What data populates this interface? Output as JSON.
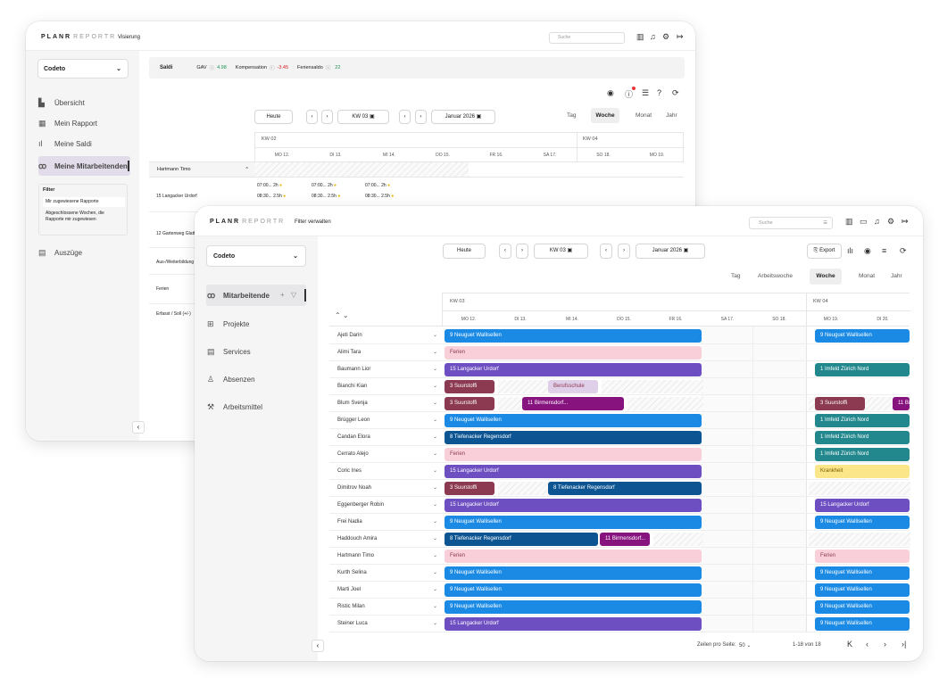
{
  "back": {
    "logo_a": "PLANR",
    "logo_b": "REPORTR",
    "nav": "Visierung",
    "search": "Suche",
    "company": "Codeto",
    "menu": [
      "Übersicht",
      "Mein Rapport",
      "Meine Saldi",
      "Meine Mitarbeitenden",
      "Auszüge"
    ],
    "filter_title": "Filter",
    "filter_opts": [
      "Mir zugewiesene Rapporte",
      "Abgeschlossene Wochen, die Rapporte mir zugewiesen"
    ],
    "saldi": "Saldi",
    "gav": "GAV",
    "gav_val": "4.98",
    "komp": "Kompensation",
    "komp_val": "-3.45",
    "ferien": "Feriensaldo",
    "ferien_val": "22",
    "heute": "Heute",
    "kw": "KW 03",
    "month": "Januar 2026",
    "views": [
      "Tag",
      "Woche",
      "Monat",
      "Jahr"
    ],
    "kw_a": "KW 02",
    "kw_b": "KW 04",
    "days": [
      "MO 12.",
      "DI 13.",
      "MI 14.",
      "DO 15.",
      "FR 16.",
      "SA 17.",
      "SO 18.",
      "MO 19."
    ],
    "employee": "Hartmann Timo",
    "rows": [
      "15 Langacker Urdorf",
      "12 Gartenweg Glattbrugg",
      "Aus-/Weiterbildung",
      "Ferien"
    ],
    "cell_time": "07:00...",
    "cell_time2": "08:30...",
    "cell_h": "2h",
    "cell_h2": "2.5h",
    "footer": "Erfasst / Soll (+/-)"
  },
  "front": {
    "logo_a": "PLANR",
    "logo_b": "REPORTR",
    "nav": "Filter verwalten",
    "search": "Suche",
    "company": "Codeto",
    "menu": [
      "Mitarbeitende",
      "Projekte",
      "Services",
      "Absenzen",
      "Arbeitsmittel"
    ],
    "heute": "Heute",
    "kw": "KW 03",
    "month": "Januar 2026",
    "export": "Export",
    "views": [
      "Tag",
      "Arbeitswoche",
      "Woche",
      "Monat",
      "Jahr"
    ],
    "kw_a": "KW 03",
    "kw_b": "KW 04",
    "days": [
      "MO 12.",
      "DI 13.",
      "MI 14.",
      "DO 15.",
      "FR 16.",
      "SA 17.",
      "SO 18.",
      "MO 19.",
      "DI 20."
    ],
    "employees": [
      "Ajeti Darin",
      "Alimi Tara",
      "Baumann Lior",
      "Bianchi Kian",
      "Blum Svenja",
      "Brügger Leon",
      "Candan Elora",
      "Cerrato Alejo",
      "Coric Ines",
      "Dimitrov Noah",
      "Eggenberger Robin",
      "Frei Nadia",
      "Haddouch Amira",
      "Hartmann Timo",
      "Kurth Selina",
      "Marti Joel",
      "Ristic Milan",
      "Steiner Luca"
    ],
    "footer_rows": "Zeilen pro Seite:",
    "footer_rows_val": "50",
    "footer_range": "1-18 von 18"
  },
  "colors": {
    "blue": "#1a8ae5",
    "pink": "#f9d0da",
    "purple": "#6d4fc2",
    "maroon": "#8b3a52",
    "magenta": "#87137f",
    "navy": "#0c5592",
    "teal": "#22888e",
    "yellow": "#fce68a",
    "lilac": "#e0cfe8"
  },
  "bars": {
    "wallisellen": "9 Neuguet Wallisellen",
    "ferien": "Ferien",
    "langacker": "15 Langacker Urdorf",
    "suurstoffi": "3 Suurstoffi",
    "berufsschule": "Berufsschule",
    "birmensdorf": "11 Birmensdorf...",
    "tiefenacker": "8 Tiefenacker Regensdorf",
    "zurich": "1 Imfeld Zürich Nord",
    "krankheit": "Krankheit",
    "birm_short": "11 Birme"
  }
}
